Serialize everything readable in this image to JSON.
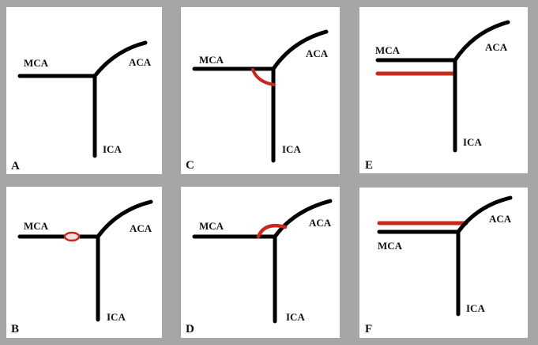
{
  "colors": {
    "background": "#a6a6a6",
    "panel": "#ffffff",
    "vessel": "#000000",
    "highlight": "#c8281e"
  },
  "vessel_labels": {
    "mca": "MCA",
    "aca": "ACA",
    "ica": "ICA"
  },
  "panels": [
    {
      "letter": "A",
      "highlight": "none"
    },
    {
      "letter": "B",
      "highlight": "ellipse-on-mca"
    },
    {
      "letter": "C",
      "highlight": "arc-mca-to-ica"
    },
    {
      "letter": "D",
      "highlight": "arc-mca-to-aca"
    },
    {
      "letter": "E",
      "highlight": "parallel-below-mca"
    },
    {
      "letter": "F",
      "highlight": "parallel-above-mca-to-aca"
    }
  ]
}
